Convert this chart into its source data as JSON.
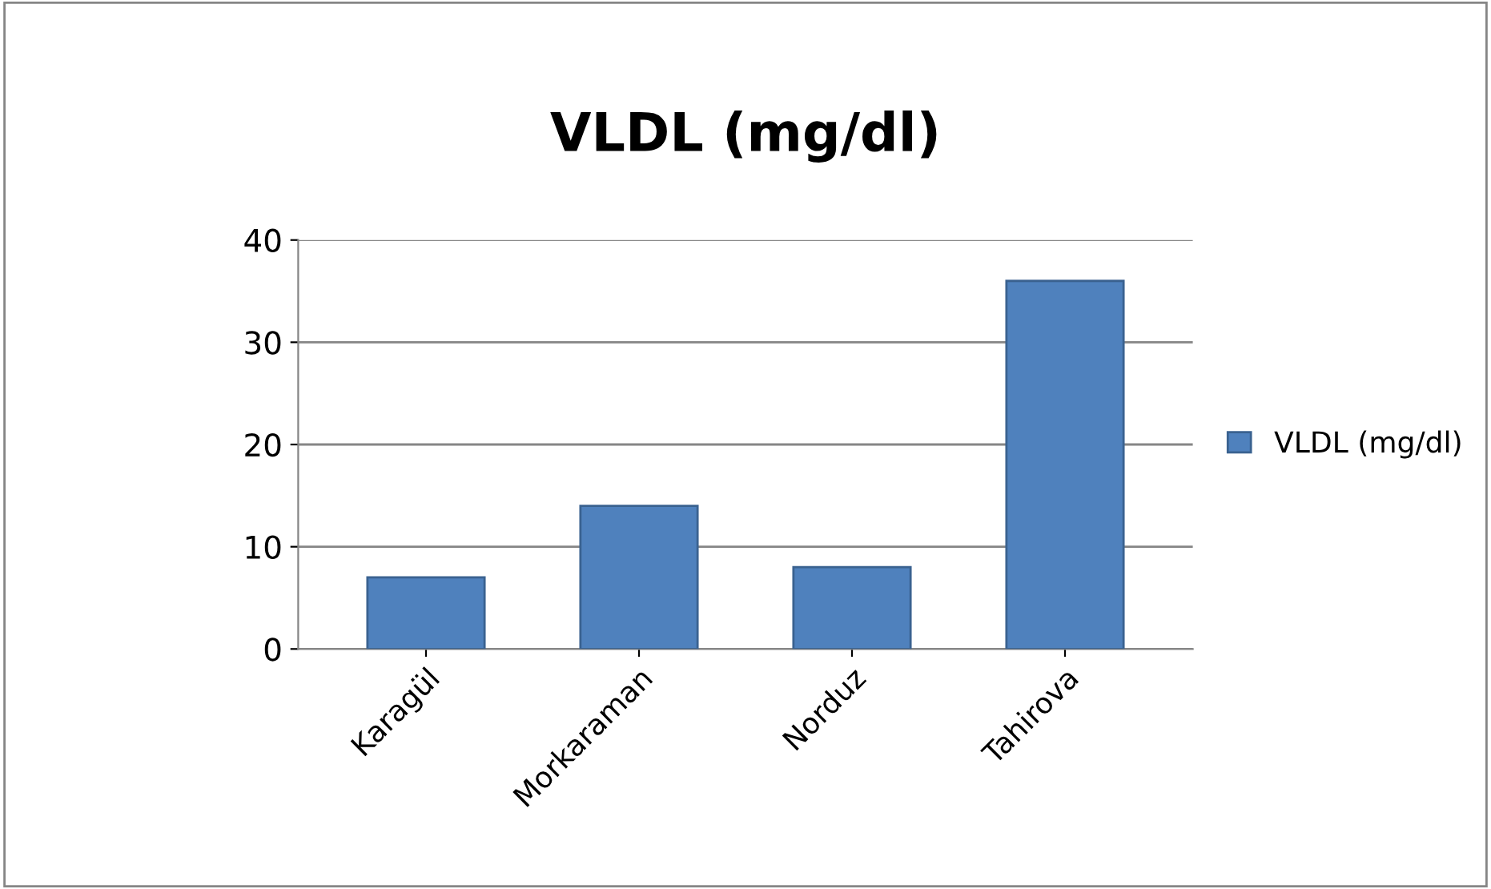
{
  "chart_data": {
    "type": "bar",
    "title": "VLDL (mg/dl)",
    "categories": [
      "Karagül",
      "Morkaraman",
      "Norduz",
      "Tahirova"
    ],
    "series": [
      {
        "name": "VLDL (mg/dl)",
        "color": "#4f81bd",
        "values": [
          7,
          14,
          8,
          36
        ]
      }
    ],
    "ylim": [
      0,
      40
    ],
    "yticks": [
      0,
      10,
      20,
      30,
      40
    ],
    "grid": "y",
    "legend": "right"
  }
}
